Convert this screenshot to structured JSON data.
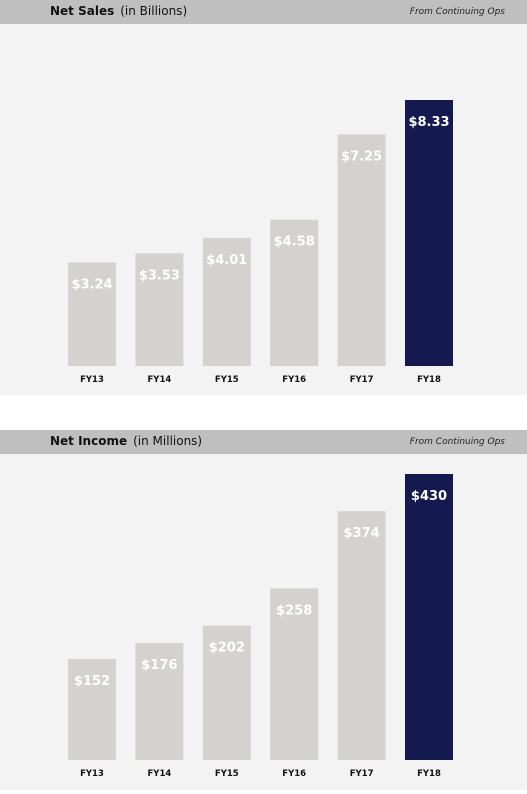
{
  "chart_data": [
    {
      "type": "bar",
      "title": "Net Sales",
      "subtitle": "(in Billions)",
      "note": "From Continuing Ops",
      "categories": [
        "FY13",
        "FY14",
        "FY15",
        "FY16",
        "FY17",
        "FY18"
      ],
      "values": [
        3.24,
        3.53,
        4.01,
        4.58,
        7.25,
        8.33
      ],
      "value_labels": [
        "$3.24",
        "$3.53",
        "$4.01",
        "$4.58",
        "$7.25",
        "$8.33"
      ],
      "highlight_index": 5,
      "colors": {
        "bar": "#d3d2ce",
        "highlight": "#141a50"
      },
      "ylim": [
        0,
        8.33
      ]
    },
    {
      "type": "bar",
      "title": "Net Income",
      "subtitle": "(in Millions)",
      "note": "From Continuing Ops",
      "categories": [
        "FY13",
        "FY14",
        "FY15",
        "FY16",
        "FY17",
        "FY18"
      ],
      "values": [
        152,
        176,
        202,
        258,
        374,
        430
      ],
      "value_labels": [
        "$152",
        "$176",
        "$202",
        "$258",
        "$374",
        "$430"
      ],
      "highlight_index": 5,
      "colors": {
        "bar": "#d3d2ce",
        "highlight": "#141a50"
      },
      "ylim": [
        0,
        430
      ]
    }
  ]
}
